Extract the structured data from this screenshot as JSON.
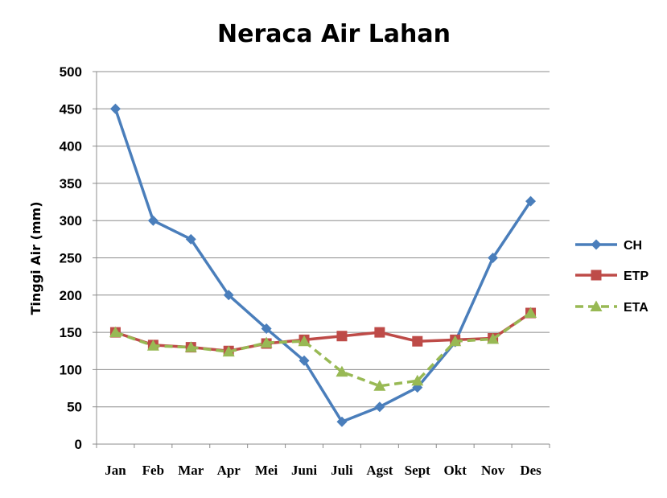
{
  "chart_data": {
    "type": "line",
    "title": "Neraca Air Lahan",
    "xlabel": "",
    "ylabel": "Tinggi Air (mm)",
    "ylim": [
      0,
      500
    ],
    "yticks": [
      0,
      50,
      100,
      150,
      200,
      250,
      300,
      350,
      400,
      450,
      500
    ],
    "grid": true,
    "legend_position": "right",
    "categories": [
      "Jan",
      "Feb",
      "Mar",
      "Apr",
      "Mei",
      "Juni",
      "Juli",
      "Agst",
      "Sept",
      "Okt",
      "Nov",
      "Des"
    ],
    "series": [
      {
        "name": "CH",
        "color": "#4a7ebb",
        "marker": "diamond",
        "dash": "solid",
        "values": [
          450,
          300,
          275,
          200,
          155,
          112,
          30,
          50,
          76,
          137,
          250,
          326
        ]
      },
      {
        "name": "ETP",
        "color": "#be4b48",
        "marker": "square",
        "dash": "solid",
        "values": [
          150,
          133,
          130,
          125,
          135,
          140,
          145,
          150,
          138,
          140,
          142,
          176
        ]
      },
      {
        "name": "ETA",
        "color": "#98b954",
        "marker": "triangle",
        "dash": "dashed",
        "values": [
          150,
          132,
          130,
          124,
          136,
          138,
          97,
          78,
          85,
          138,
          141,
          176
        ]
      }
    ]
  }
}
